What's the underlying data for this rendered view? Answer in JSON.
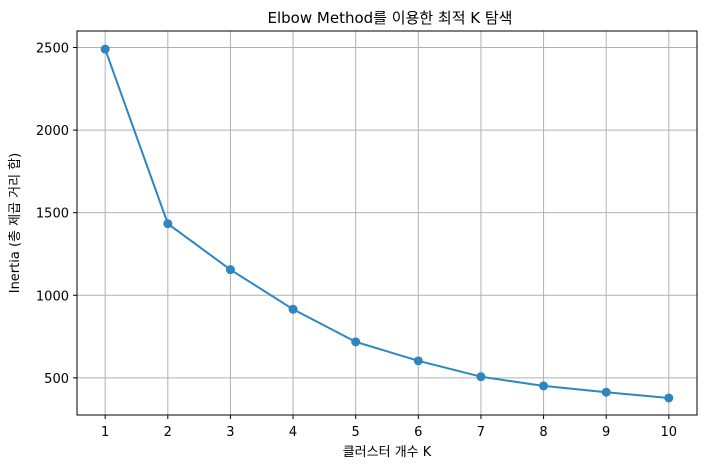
{
  "chart_data": {
    "type": "line",
    "title": "Elbow Method를 이용한 최적 K 탐색",
    "xlabel": "클러스터 개수 K",
    "ylabel": "Inertia (총 제곱 거리 합)",
    "x": [
      1,
      2,
      3,
      4,
      5,
      6,
      7,
      8,
      9,
      10
    ],
    "series": [
      {
        "values": [
          2490,
          1433,
          1155,
          915,
          718,
          603,
          507,
          451,
          413,
          378
        ],
        "color": "#2e86c1",
        "marker": "circle"
      }
    ],
    "xticks": [
      "1",
      "2",
      "3",
      "4",
      "5",
      "6",
      "7",
      "8",
      "9",
      "10"
    ],
    "yticks": [
      "500",
      "1000",
      "1500",
      "2000",
      "2500"
    ],
    "xlim": [
      0.55,
      10.45
    ],
    "ylim": [
      275,
      2600
    ],
    "grid": true,
    "grid_color": "#b0b0b0",
    "text_color": "#000000"
  }
}
